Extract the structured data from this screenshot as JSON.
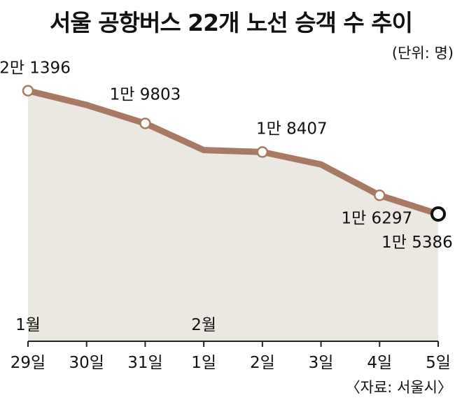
{
  "chart_data": {
    "type": "line",
    "title": "서울 공항버스 22개 노선 승객 수 추이",
    "unit_note": "(단위: 명)",
    "source": "〈자료: 서울시〉",
    "x": [
      "29일",
      "30일",
      "31일",
      "1일",
      "2일",
      "3일",
      "4일",
      "5일"
    ],
    "month_labels": [
      {
        "at": "29일",
        "text": "1월"
      },
      {
        "at": "1일",
        "text": "2월"
      }
    ],
    "values": [
      21396,
      20700,
      19803,
      18500,
      18407,
      17800,
      16297,
      15386
    ],
    "point_labels": [
      {
        "index": 0,
        "text": "2만 1396"
      },
      {
        "index": 2,
        "text": "1만 9803"
      },
      {
        "index": 4,
        "text": "1만 8407"
      },
      {
        "index": 6,
        "text": "1만 6297"
      },
      {
        "index": 7,
        "text": "1만 5386"
      }
    ],
    "ylim": [
      13000,
      22000
    ],
    "grid": false,
    "colors": {
      "line": "#a87a63",
      "area": "#ebe8e1",
      "axis": "#222222"
    }
  }
}
